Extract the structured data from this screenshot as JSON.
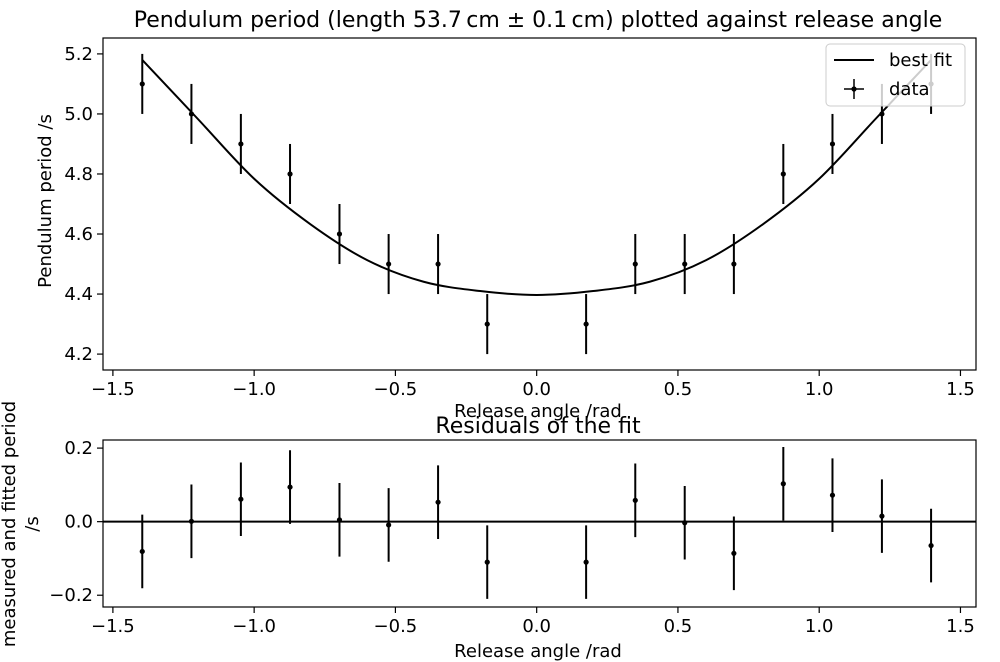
{
  "colors": {
    "line": "#000000",
    "axes": "#000000",
    "background": "#ffffff",
    "legend_border": "#cccccc"
  },
  "chart_data": [
    {
      "type": "scatter",
      "title": "Pendulum period (length 53.7 cm ± 0.1 cm) plotted against release angle",
      "xlabel": "Release angle /rad",
      "ylabel": "Pendulum period /s",
      "xlim": [
        -1.535,
        1.555
      ],
      "ylim": [
        4.147,
        5.253
      ],
      "xticks": [
        -1.5,
        -1.0,
        -0.5,
        0.0,
        0.5,
        1.0,
        1.5
      ],
      "xtick_labels": [
        "−1.5",
        "−1.0",
        "−0.5",
        "0.0",
        "0.5",
        "1.0",
        "1.5"
      ],
      "yticks": [
        4.2,
        4.4,
        4.6,
        4.8,
        5.0,
        5.2
      ],
      "ytick_labels": [
        "4.2",
        "4.4",
        "4.6",
        "4.8",
        "5.0",
        "5.2"
      ],
      "legend": {
        "placement": "top-right",
        "entries": [
          "best fit",
          "data"
        ]
      },
      "grid": false,
      "series": [
        {
          "name": "data",
          "kind": "errorbar",
          "x": [
            -1.396,
            -1.222,
            -1.047,
            -0.873,
            -0.698,
            -0.524,
            -0.349,
            -0.175,
            0.175,
            0.349,
            0.524,
            0.698,
            0.873,
            1.047,
            1.222,
            1.396
          ],
          "y": [
            5.1,
            5.0,
            4.9,
            4.8,
            4.6,
            4.5,
            4.5,
            4.3,
            4.3,
            4.5,
            4.5,
            4.5,
            4.8,
            4.9,
            5.0,
            5.1
          ],
          "yerr": 0.1
        },
        {
          "name": "best fit",
          "kind": "line",
          "x": [
            -1.396,
            -1.2,
            -1.0,
            -0.8,
            -0.6,
            -0.4,
            -0.2,
            0.0,
            0.2,
            0.4,
            0.6,
            0.8,
            1.0,
            1.2,
            1.396
          ],
          "y": [
            5.18,
            4.984,
            4.784,
            4.632,
            4.513,
            4.441,
            4.41,
            4.397,
            4.41,
            4.441,
            4.513,
            4.632,
            4.784,
            4.984,
            5.18
          ]
        }
      ]
    },
    {
      "type": "scatter",
      "title": "Residuals of the fit",
      "xlabel": "Release angle /rad",
      "ylabel_lines": [
        "measured and fitted period",
        "/s"
      ],
      "xlim": [
        -1.535,
        1.555
      ],
      "ylim": [
        -0.232,
        0.222
      ],
      "xticks": [
        -1.5,
        -1.0,
        -0.5,
        0.0,
        0.5,
        1.0,
        1.5
      ],
      "xtick_labels": [
        "−1.5",
        "−1.0",
        "−0.5",
        "0.0",
        "0.5",
        "1.0",
        "1.5"
      ],
      "yticks": [
        -0.2,
        0.0,
        0.2
      ],
      "ytick_labels": [
        "−0.2",
        "0.0",
        "0.2"
      ],
      "grid": false,
      "reference_line_y": 0,
      "series": [
        {
          "kind": "errorbar",
          "x": [
            -1.396,
            -1.222,
            -1.047,
            -0.873,
            -0.698,
            -0.524,
            -0.349,
            -0.175,
            0.175,
            0.349,
            0.524,
            0.698,
            0.873,
            1.047,
            1.222,
            1.396
          ],
          "y": [
            -0.081,
            0.001,
            0.061,
            0.094,
            0.005,
            -0.009,
            0.053,
            -0.11,
            -0.11,
            0.058,
            -0.003,
            -0.086,
            0.103,
            0.072,
            0.015,
            -0.065
          ],
          "yerr": 0.1
        }
      ]
    }
  ]
}
